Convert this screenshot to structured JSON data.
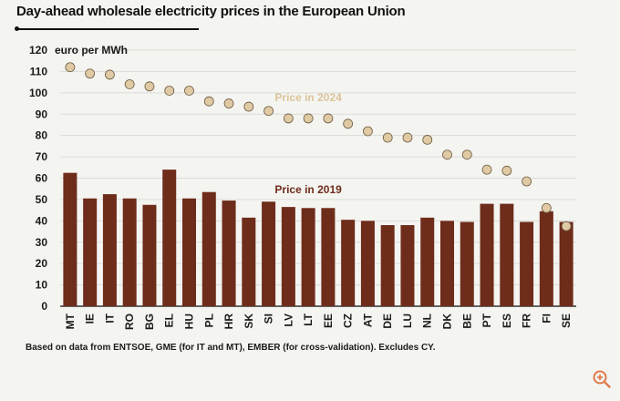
{
  "header": {
    "title": "Day-ahead wholesale electricity prices in the European Union"
  },
  "footnote": "Based on data from ENTSOE, GME (for IT and MT), EMBER (for cross-validation). Excludes CY.",
  "colors": {
    "bar_2019": "#6e2c1a",
    "dot_2024": "#e0caa4",
    "label_2024": "#dcc49a",
    "label_2019": "#6e2c1a",
    "grid": "#dcdcd8",
    "zoom_icon": "#e07a4a"
  },
  "icons": {
    "zoom": "zoom-in-icon"
  },
  "chart_data": {
    "type": "bar",
    "title": "Day-ahead wholesale electricity prices in the European Union",
    "ylabel": "euro per MWh",
    "xlabel": "",
    "ylim": [
      0,
      120
    ],
    "yticks": [
      0,
      10,
      20,
      30,
      40,
      50,
      60,
      70,
      80,
      90,
      100,
      110,
      120
    ],
    "grid": true,
    "categories": [
      "MT",
      "IE",
      "IT",
      "RO",
      "BG",
      "EL",
      "HU",
      "PL",
      "HR",
      "SK",
      "SI",
      "LV",
      "LT",
      "EE",
      "CZ",
      "AT",
      "DE",
      "LU",
      "NL",
      "DK",
      "BE",
      "PT",
      "ES",
      "FR",
      "FI",
      "SE"
    ],
    "series": [
      {
        "name": "Price in 2019",
        "kind": "bar",
        "values": [
          62.5,
          50.5,
          52.5,
          50.5,
          47.5,
          64,
          50.5,
          53.5,
          49.5,
          41.5,
          49,
          46.5,
          46,
          46,
          40.5,
          40,
          38,
          38,
          41.5,
          40,
          39.5,
          48,
          48,
          39.5,
          44.5,
          39.5
        ]
      },
      {
        "name": "Price in 2024",
        "kind": "dot",
        "values": [
          112,
          109,
          108.5,
          104,
          103,
          101,
          101,
          96,
          95,
          93.5,
          91.5,
          88,
          88,
          88,
          85.5,
          82,
          79,
          79,
          78,
          71,
          71,
          64,
          63.5,
          58.5,
          46,
          37.5
        ]
      }
    ],
    "annotations": [
      "Price in 2024",
      "Price in 2019"
    ]
  }
}
